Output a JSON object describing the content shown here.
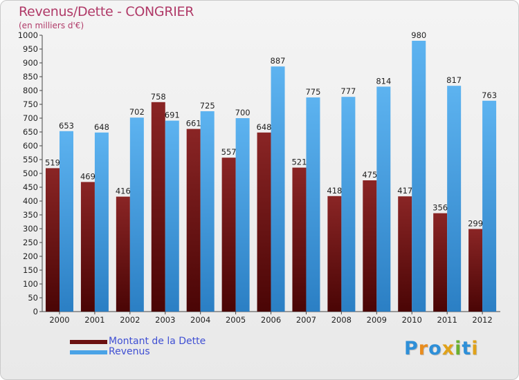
{
  "colors": {
    "dette": "#7a1a1a",
    "revenus": "#4aa3e6",
    "title": "#b03a68",
    "legend_text": "#3f4fd3"
  },
  "logo": {
    "letters": [
      {
        "char": "P",
        "color": "#2e8fd8"
      },
      {
        "char": "r",
        "color": "#e98c1d"
      },
      {
        "char": "o",
        "color": "#2e8fd8"
      },
      {
        "char": "x",
        "color": "#e0a21a"
      },
      {
        "char": "i",
        "color": "#6ab02f"
      },
      {
        "char": "t",
        "color": "#2e8fd8"
      },
      {
        "char": "i",
        "color": "#e0a21a"
      }
    ]
  },
  "chart_data": {
    "type": "bar",
    "title": "Revenus/Dette - CONGRIER",
    "subtitle": "(en milliers d'€)",
    "categories": [
      "2000",
      "2001",
      "2002",
      "2003",
      "2004",
      "2005",
      "2006",
      "2007",
      "2008",
      "2009",
      "2010",
      "2011",
      "2012"
    ],
    "series": [
      {
        "name": "Montant de la Dette",
        "values": [
          519,
          469,
          416,
          758,
          661,
          557,
          648,
          521,
          418,
          475,
          417,
          356,
          299
        ]
      },
      {
        "name": "Revenus",
        "values": [
          653,
          648,
          702,
          691,
          725,
          700,
          887,
          775,
          777,
          814,
          980,
          817,
          763
        ]
      }
    ],
    "ylim": [
      0,
      1000
    ],
    "ytick_step": 50,
    "grid": false,
    "legend_position": "bottom-left"
  }
}
